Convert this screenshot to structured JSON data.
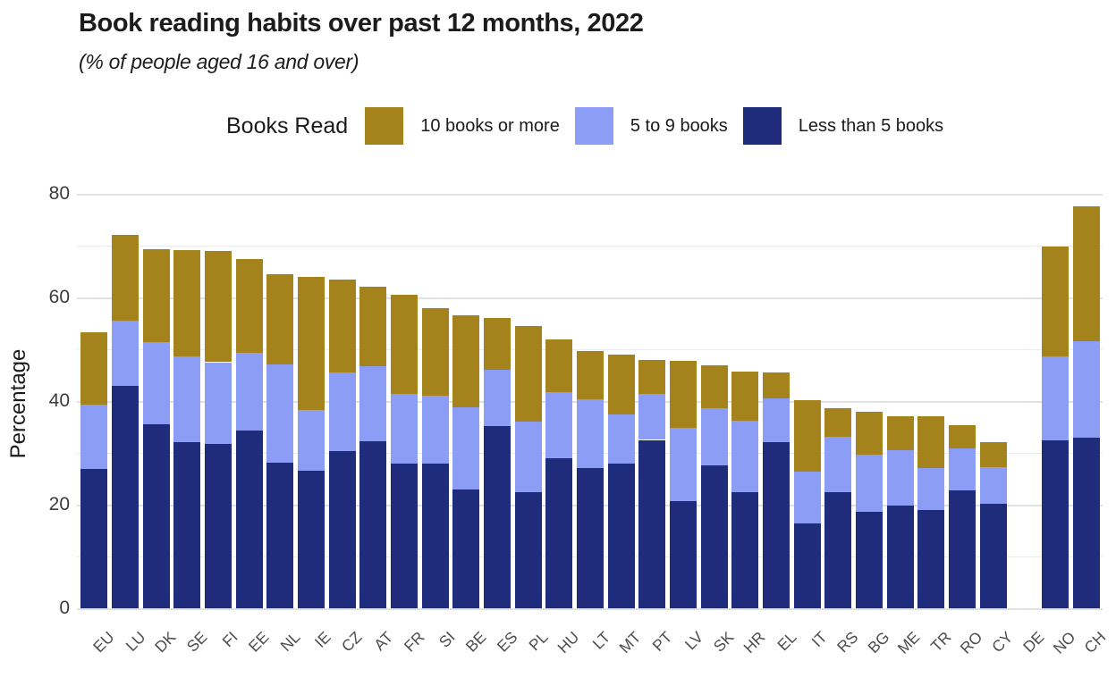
{
  "title": "Book reading habits over past 12 months, 2022",
  "subtitle": "(% of people aged 16 and over)",
  "legend": {
    "title": "Books Read",
    "items": [
      {
        "label": "10 books or more",
        "color": "#A5831C"
      },
      {
        "label": "5 to 9 books",
        "color": "#8B9DF4"
      },
      {
        "label": "Less than 5 books",
        "color": "#1F2C7C"
      }
    ]
  },
  "chart_data": {
    "type": "bar",
    "stacked": true,
    "title": "Book reading habits over past 12 months, 2022",
    "subtitle": "(% of people aged 16 and over)",
    "xlabel": "",
    "ylabel": "Percentage",
    "ylim": [
      0,
      80
    ],
    "yticks": [
      0,
      20,
      40,
      60,
      80
    ],
    "grid": "horizontal lines every 10 units, majors every 20",
    "legend_position": "top",
    "note": "DE has no bar (missing data)",
    "categories": [
      "EU",
      "LU",
      "DK",
      "SE",
      "FI",
      "EE",
      "NL",
      "IE",
      "CZ",
      "AT",
      "FR",
      "SI",
      "BE",
      "ES",
      "PL",
      "HU",
      "LT",
      "MT",
      "PT",
      "LV",
      "SK",
      "HR",
      "EL",
      "IT",
      "RS",
      "BG",
      "ME",
      "TR",
      "RO",
      "CY",
      "DE",
      "NO",
      "CH"
    ],
    "series": [
      {
        "name": "Less than 5 books",
        "color": "#1F2C7C",
        "values": [
          26.9,
          43.0,
          35.6,
          32.0,
          31.7,
          34.3,
          28.1,
          26.5,
          30.4,
          32.2,
          27.9,
          27.9,
          23.0,
          35.2,
          22.4,
          28.9,
          27.1,
          28.0,
          32.5,
          20.7,
          27.6,
          22.4,
          32.0,
          16.4,
          22.4,
          18.7,
          19.8,
          18.9,
          22.7,
          20.1,
          null,
          32.4,
          32.9
        ]
      },
      {
        "name": "5 to 9 books",
        "color": "#8B9DF4",
        "values": [
          12.4,
          12.5,
          15.7,
          16.6,
          15.8,
          15.0,
          19.0,
          11.8,
          15.2,
          14.6,
          13.5,
          13.2,
          15.8,
          10.9,
          13.7,
          12.8,
          13.2,
          9.4,
          8.9,
          14.1,
          11.0,
          13.8,
          8.6,
          10.0,
          10.7,
          11.0,
          10.8,
          8.2,
          8.2,
          7.2,
          null,
          16.2,
          18.7
        ]
      },
      {
        "name": "10 books or more",
        "color": "#A5831C",
        "values": [
          13.9,
          16.6,
          18.0,
          20.6,
          21.5,
          18.1,
          17.3,
          25.6,
          17.9,
          15.2,
          19.1,
          16.9,
          17.8,
          9.9,
          18.3,
          10.2,
          9.4,
          11.5,
          6.5,
          12.9,
          8.3,
          9.5,
          4.9,
          13.8,
          5.5,
          8.3,
          6.5,
          9.9,
          4.5,
          4.8,
          null,
          21.3,
          26.0
        ]
      }
    ]
  }
}
